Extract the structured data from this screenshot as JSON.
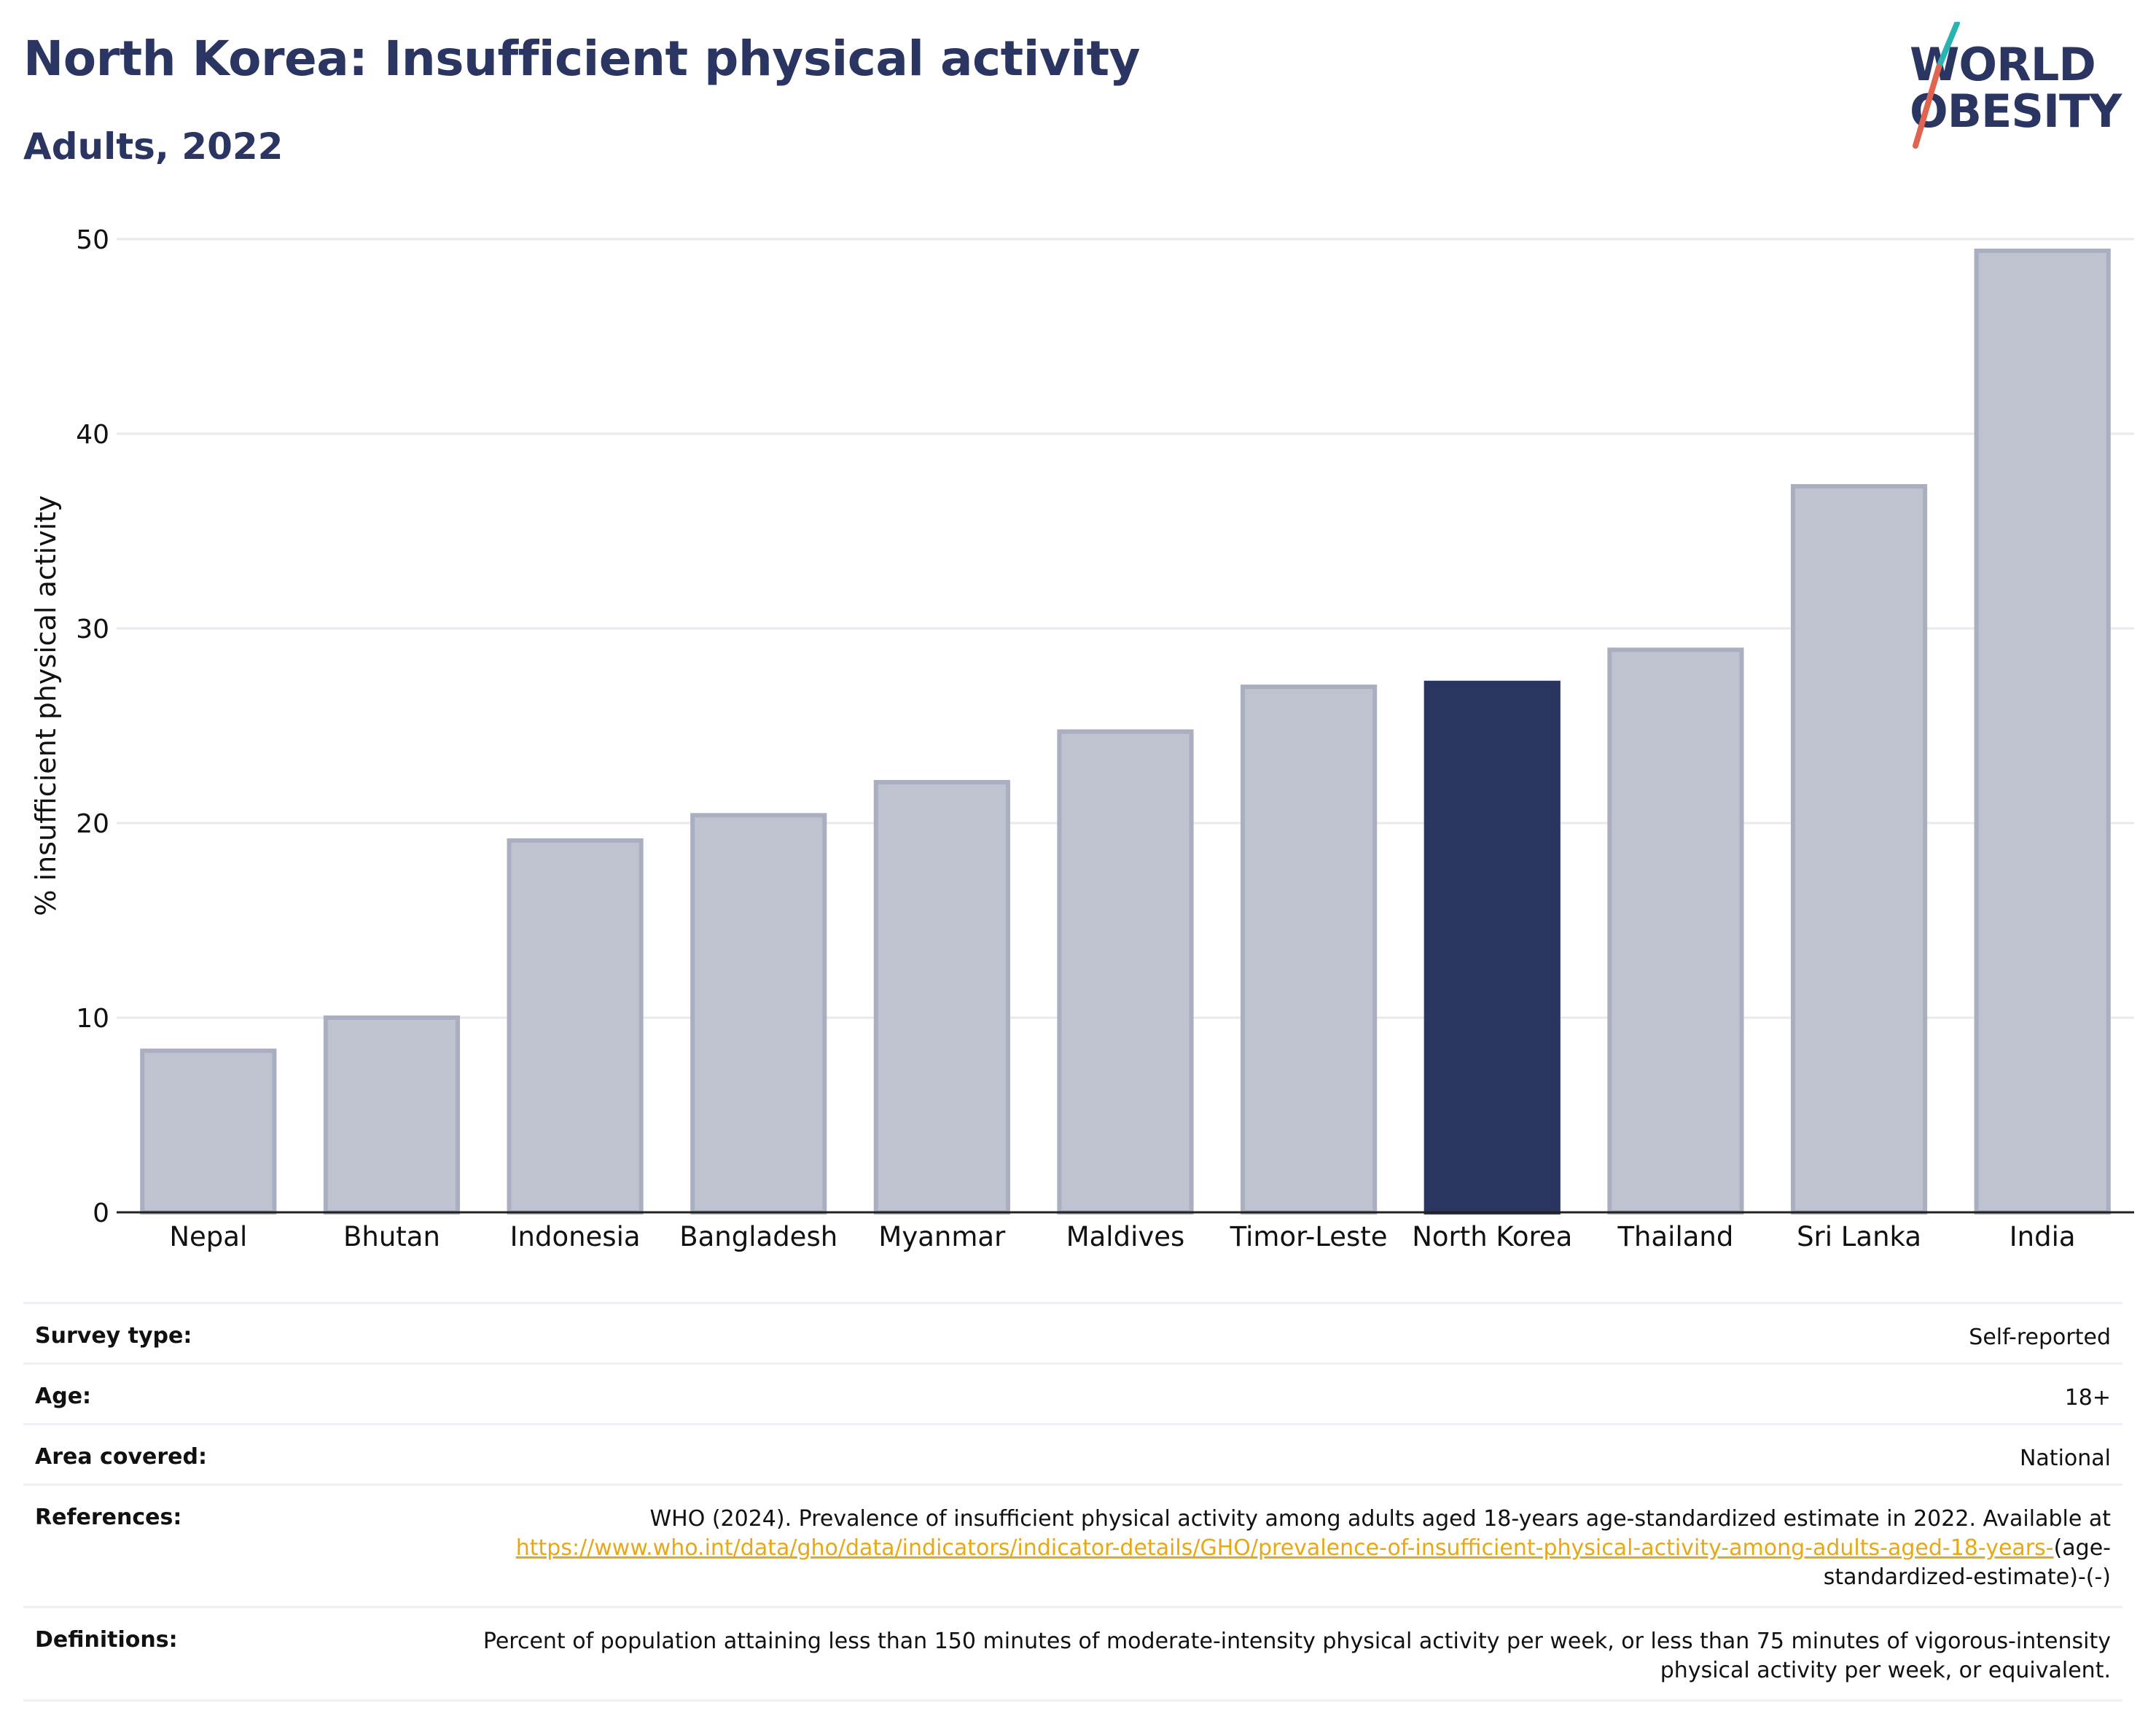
{
  "header": {
    "title": "North Korea: Insufficient physical activity",
    "subtitle": "Adults, 2022"
  },
  "logo": {
    "line1": "WORLD",
    "line2": "OBESITY",
    "colors": {
      "text": "#2b3561",
      "slash_top": "#2bb3b1",
      "slash_bottom": "#e0644f"
    }
  },
  "colors": {
    "highlight_bar": "#2b3561",
    "other_bar": "#bfc3d0",
    "other_bar_border": "#a9aec0",
    "link": "#e6a817",
    "gridline": "#e8eaf0"
  },
  "chart_data": {
    "type": "bar",
    "categories": [
      "Nepal",
      "Bhutan",
      "Indonesia",
      "Bangladesh",
      "Myanmar",
      "Maldives",
      "Timor-Leste",
      "North Korea",
      "Thailand",
      "Sri Lanka",
      "India"
    ],
    "values": [
      8.3,
      10.0,
      19.1,
      20.4,
      22.1,
      24.7,
      27.0,
      27.2,
      28.9,
      37.3,
      49.4
    ],
    "highlight": "North Korea",
    "ylabel": "% insufficient physical activity",
    "xlabel": "",
    "ylim": [
      0,
      50
    ],
    "yticks": [
      0,
      10,
      20,
      30,
      40,
      50
    ],
    "grid": true
  },
  "meta": {
    "survey_type": {
      "label": "Survey type:",
      "value": "Self-reported"
    },
    "age": {
      "label": "Age:",
      "value": "18+"
    },
    "area": {
      "label": "Area covered:",
      "value": "National"
    },
    "references": {
      "label": "References:",
      "text": "WHO (2024). Prevalence of insufficient physical activity among adults aged 18-years age-standardized estimate in 2022. Available at",
      "link": "https://www.who.int/data/gho/data/indicators/indicator-details/GHO/prevalence-of-insufficient-physical-activity-among-adults-aged-18-years-",
      "suffix": "(age-standardized-estimate)-(-)"
    },
    "definitions": {
      "label": "Definitions:",
      "value": "Percent of population attaining less than 150 minutes of moderate-intensity physical activity per week, or less than 75 minutes of vigorous-intensity physical activity per week, or equivalent."
    }
  }
}
